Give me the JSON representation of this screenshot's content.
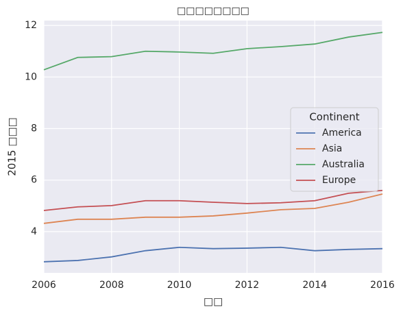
{
  "chart_data": {
    "type": "line",
    "title": "□□□□□□□□",
    "x_label": "□□",
    "y_label": "2015 □□□",
    "x": [
      2006,
      2007,
      2008,
      2009,
      2010,
      2011,
      2012,
      2013,
      2014,
      2015,
      2016
    ],
    "series": [
      {
        "name": "America",
        "color": "#4c72b0",
        "values": [
          2.83,
          2.88,
          3.02,
          3.26,
          3.39,
          3.34,
          3.36,
          3.39,
          3.26,
          3.31,
          3.34
        ]
      },
      {
        "name": "Asia",
        "color": "#dd8452",
        "values": [
          4.32,
          4.48,
          4.48,
          4.56,
          4.56,
          4.61,
          4.72,
          4.85,
          4.9,
          5.14,
          5.46
        ]
      },
      {
        "name": "Australia",
        "color": "#55a868",
        "values": [
          10.28,
          10.76,
          10.79,
          11.0,
          10.97,
          10.92,
          11.1,
          11.18,
          11.28,
          11.55,
          11.73
        ]
      },
      {
        "name": "Europe",
        "color": "#c44e52",
        "values": [
          4.82,
          4.96,
          5.01,
          5.2,
          5.2,
          5.14,
          5.09,
          5.12,
          5.2,
          5.49,
          5.6
        ]
      }
    ],
    "legend_title": "Continent",
    "legend": "center right",
    "xlim": [
      2006,
      2016
    ],
    "xticks": [
      2006,
      2008,
      2010,
      2012,
      2014,
      2016
    ],
    "ylim": [
      2.4,
      12.19
    ],
    "yticks": [
      4,
      6,
      8,
      10,
      12
    ],
    "grid": true
  }
}
